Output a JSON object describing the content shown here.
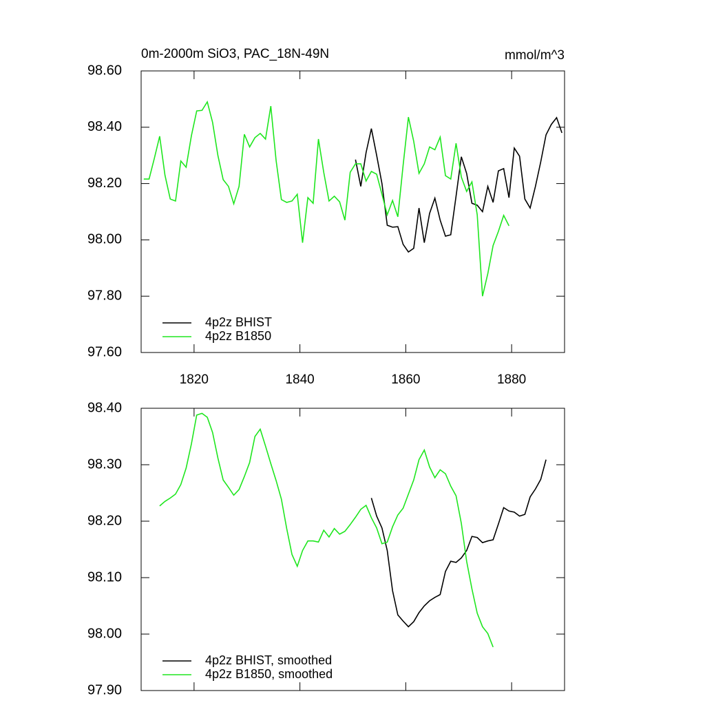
{
  "chart_data": [
    {
      "type": "line",
      "title": "0m-2000m SiO3, PAC_18N-49N",
      "units": "mmol/m^3",
      "x": [
        1810.5,
        1811.5,
        1812.5,
        1813.5,
        1814.5,
        1815.5,
        1816.5,
        1817.5,
        1818.5,
        1819.5,
        1820.5,
        1821.5,
        1822.5,
        1823.5,
        1824.5,
        1825.5,
        1826.5,
        1827.5,
        1828.5,
        1829.5,
        1830.5,
        1831.5,
        1832.5,
        1833.5,
        1834.5,
        1835.5,
        1836.5,
        1837.5,
        1838.5,
        1839.5,
        1840.5,
        1841.5,
        1842.5,
        1843.5,
        1844.5,
        1845.5,
        1846.5,
        1847.5,
        1848.5,
        1849.5,
        1850.5,
        1851.5,
        1852.5,
        1853.5,
        1854.5,
        1855.5,
        1856.5,
        1857.5,
        1858.5,
        1859.5,
        1860.5,
        1861.5,
        1862.5,
        1863.5,
        1864.5,
        1865.5,
        1866.5,
        1867.5,
        1868.5,
        1869.5,
        1870.5,
        1871.5,
        1872.5,
        1873.5,
        1874.5,
        1875.5,
        1876.5,
        1877.5,
        1878.5,
        1879.5,
        1880.5,
        1881.5,
        1882.5,
        1883.5,
        1884.5,
        1885.5,
        1886.5,
        1887.5,
        1888.5,
        1889.5
      ],
      "series": [
        {
          "name": "4p2z BHIST",
          "color": "#000000",
          "values": [
            null,
            null,
            null,
            null,
            null,
            null,
            null,
            null,
            null,
            null,
            null,
            null,
            null,
            null,
            null,
            null,
            null,
            null,
            null,
            null,
            null,
            null,
            null,
            null,
            null,
            null,
            null,
            null,
            null,
            null,
            null,
            null,
            null,
            null,
            null,
            null,
            null,
            null,
            null,
            null,
            98.285,
            98.19,
            98.31,
            98.395,
            98.3,
            98.2,
            98.052,
            98.045,
            98.047,
            97.984,
            97.957,
            97.97,
            98.113,
            97.99,
            98.094,
            98.148,
            98.07,
            98.013,
            98.018,
            98.155,
            98.295,
            98.236,
            98.13,
            98.123,
            98.1,
            98.19,
            98.133,
            98.245,
            98.253,
            98.15,
            98.326,
            98.297,
            98.145,
            98.113,
            98.19,
            98.277,
            98.373,
            98.41,
            98.434,
            98.38
          ]
        },
        {
          "name": "4p2z B1850",
          "color": "#1ee61e",
          "values": [
            98.216,
            98.216,
            98.29,
            98.368,
            98.23,
            98.145,
            98.138,
            98.28,
            98.258,
            98.37,
            98.458,
            98.46,
            98.49,
            98.417,
            98.3,
            98.214,
            98.19,
            98.128,
            98.19,
            98.375,
            98.33,
            98.363,
            98.378,
            98.358,
            98.475,
            98.282,
            98.143,
            98.133,
            98.138,
            98.162,
            97.99,
            98.15,
            98.13,
            98.358,
            98.24,
            98.138,
            98.155,
            98.135,
            98.07,
            98.24,
            98.27,
            98.27,
            98.209,
            98.243,
            98.233,
            98.162,
            98.089,
            98.14,
            98.082,
            98.265,
            98.436,
            98.35,
            98.236,
            98.27,
            98.33,
            98.32,
            98.365,
            98.228,
            98.216,
            98.343,
            98.223,
            98.172,
            98.206,
            98.089,
            97.8,
            97.88,
            97.98,
            98.03,
            98.087,
            98.05,
            null,
            null,
            null,
            null,
            null,
            null,
            null,
            null,
            null,
            null
          ]
        }
      ],
      "xlim": [
        1810,
        1890
      ],
      "xticks": [
        1820,
        1840,
        1860,
        1880
      ],
      "xtick_labels": true,
      "ylim": [
        97.6,
        98.6
      ],
      "yticks": [
        {
          "value": 97.6,
          "label": "97.60"
        },
        {
          "value": 97.8,
          "label": "97.80"
        },
        {
          "value": 98.0,
          "label": "98.00"
        },
        {
          "value": 98.2,
          "label": "98.20"
        },
        {
          "value": 98.4,
          "label": "98.40"
        },
        {
          "value": 98.6,
          "label": "98.60"
        }
      ],
      "legend": "lower left"
    },
    {
      "type": "line",
      "x": [
        1810.5,
        1811.5,
        1812.5,
        1813.5,
        1814.5,
        1815.5,
        1816.5,
        1817.5,
        1818.5,
        1819.5,
        1820.5,
        1821.5,
        1822.5,
        1823.5,
        1824.5,
        1825.5,
        1826.5,
        1827.5,
        1828.5,
        1829.5,
        1830.5,
        1831.5,
        1832.5,
        1833.5,
        1834.5,
        1835.5,
        1836.5,
        1837.5,
        1838.5,
        1839.5,
        1840.5,
        1841.5,
        1842.5,
        1843.5,
        1844.5,
        1845.5,
        1846.5,
        1847.5,
        1848.5,
        1849.5,
        1850.5,
        1851.5,
        1852.5,
        1853.5,
        1854.5,
        1855.5,
        1856.5,
        1857.5,
        1858.5,
        1859.5,
        1860.5,
        1861.5,
        1862.5,
        1863.5,
        1864.5,
        1865.5,
        1866.5,
        1867.5,
        1868.5,
        1869.5,
        1870.5,
        1871.5,
        1872.5,
        1873.5,
        1874.5,
        1875.5,
        1876.5,
        1877.5,
        1878.5,
        1879.5,
        1880.5,
        1881.5,
        1882.5,
        1883.5,
        1884.5,
        1885.5,
        1886.5,
        1887.5,
        1888.5,
        1889.5
      ],
      "series": [
        {
          "name": "4p2z BHIST, smoothed",
          "color": "#000000",
          "values": [
            null,
            null,
            null,
            null,
            null,
            null,
            null,
            null,
            null,
            null,
            null,
            null,
            null,
            null,
            null,
            null,
            null,
            null,
            null,
            null,
            null,
            null,
            null,
            null,
            null,
            null,
            null,
            null,
            null,
            null,
            null,
            null,
            null,
            null,
            null,
            null,
            null,
            null,
            null,
            null,
            null,
            null,
            null,
            98.241,
            98.209,
            98.188,
            98.148,
            98.077,
            98.034,
            98.023,
            98.013,
            98.022,
            98.038,
            98.05,
            98.059,
            98.065,
            98.07,
            98.111,
            98.129,
            98.127,
            98.135,
            98.148,
            98.173,
            98.171,
            98.162,
            98.165,
            98.167,
            98.195,
            98.224,
            98.218,
            98.216,
            98.209,
            98.212,
            98.243,
            98.257,
            98.274,
            98.309,
            null,
            null,
            null
          ]
        },
        {
          "name": "4p2z B1850, smoothed",
          "color": "#1ee61e",
          "values": [
            null,
            null,
            null,
            98.227,
            98.235,
            98.241,
            98.248,
            98.265,
            98.294,
            98.337,
            98.388,
            98.391,
            98.384,
            98.357,
            98.312,
            98.273,
            98.26,
            98.246,
            98.256,
            98.279,
            98.304,
            98.35,
            98.363,
            98.333,
            98.302,
            98.272,
            98.239,
            98.187,
            98.141,
            98.12,
            98.148,
            98.165,
            98.165,
            98.163,
            98.184,
            98.172,
            98.187,
            98.177,
            98.182,
            98.194,
            98.207,
            98.221,
            98.228,
            98.206,
            98.188,
            98.16,
            98.163,
            98.19,
            98.211,
            98.223,
            98.248,
            98.273,
            98.309,
            98.326,
            98.296,
            98.277,
            98.291,
            98.284,
            98.262,
            98.245,
            98.196,
            98.129,
            98.08,
            98.037,
            98.013,
            98.001,
            97.977,
            null,
            null,
            null,
            null,
            null,
            null,
            null,
            null,
            null,
            null,
            null,
            null,
            null
          ]
        }
      ],
      "xlim": [
        1810,
        1890
      ],
      "xticks": [
        1820,
        1840,
        1860,
        1880
      ],
      "xtick_labels": false,
      "ylim": [
        97.9,
        98.4
      ],
      "yticks": [
        {
          "value": 97.9,
          "label": "97.90"
        },
        {
          "value": 98.0,
          "label": "98.00"
        },
        {
          "value": 98.1,
          "label": "98.10"
        },
        {
          "value": 98.2,
          "label": "98.20"
        },
        {
          "value": 98.3,
          "label": "98.30"
        },
        {
          "value": 98.4,
          "label": "98.40"
        }
      ],
      "legend": "lower left"
    }
  ]
}
